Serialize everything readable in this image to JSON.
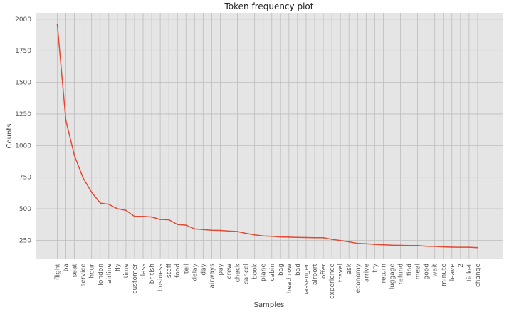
{
  "chart_data": {
    "type": "line",
    "title": "Token frequency plot",
    "xlabel": "Samples",
    "ylabel": "Counts",
    "ylim": [
      100,
      2050
    ],
    "yticks": [
      250,
      500,
      750,
      1000,
      1250,
      1500,
      1750,
      2000
    ],
    "grid": true,
    "colors": {
      "background": "#e5e5e5",
      "grid": "#ffffff",
      "line": "#e24a33"
    },
    "categories": [
      "flight",
      "ba",
      "seat",
      "service",
      "hour",
      "london",
      "airline",
      "fly",
      "time",
      "customer",
      "class",
      "british",
      "business",
      "staff",
      "food",
      "tell",
      "delay",
      "day",
      "airways",
      "pay",
      "crew",
      "check",
      "cancel",
      "book",
      "plane",
      "cabin",
      "bag",
      "heathrow",
      "bad",
      "passenger",
      "airport",
      "offer",
      "experience",
      "travel",
      "ask",
      "economy",
      "arrive",
      "try",
      "return",
      "luggage",
      "refund",
      "find",
      "meal",
      "good",
      "wait",
      "minute",
      "leave",
      "2",
      "ticket",
      "change"
    ],
    "series": [
      {
        "values": [
          1960,
          1200,
          920,
          745,
          630,
          545,
          535,
          500,
          487,
          440,
          440,
          435,
          415,
          413,
          375,
          370,
          340,
          335,
          330,
          328,
          323,
          320,
          305,
          293,
          285,
          282,
          277,
          275,
          273,
          272,
          271,
          270,
          258,
          248,
          238,
          225,
          223,
          218,
          214,
          211,
          210,
          209,
          208,
          203,
          202,
          198,
          196,
          195,
          195,
          192
        ]
      }
    ]
  }
}
